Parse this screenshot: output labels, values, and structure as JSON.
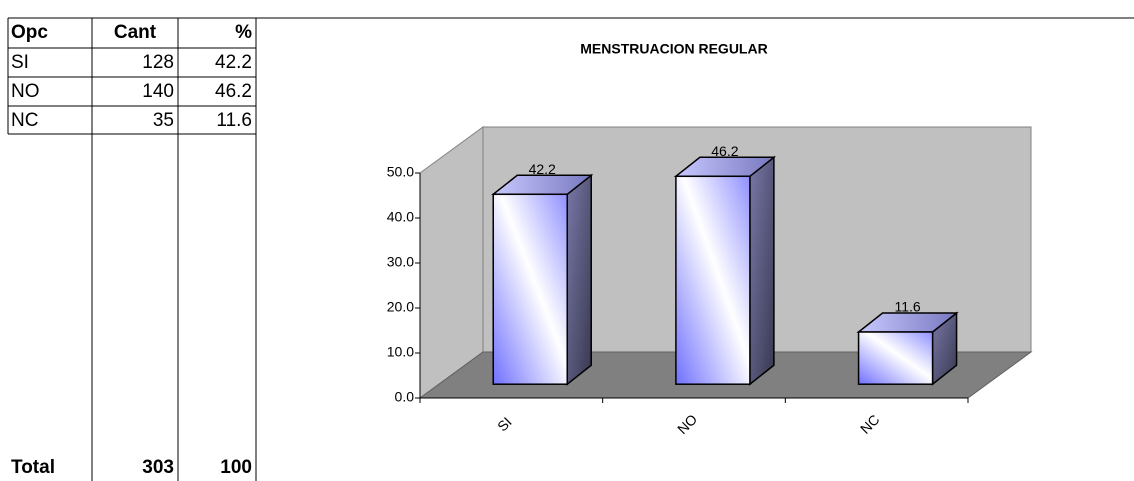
{
  "table": {
    "header": [
      "Opc",
      "Cant",
      "%"
    ],
    "rows": [
      [
        "SI",
        128,
        42.2
      ],
      [
        "NO",
        140,
        46.2
      ],
      [
        "NC",
        35,
        11.6
      ]
    ],
    "total": [
      "Total",
      303,
      100
    ]
  },
  "chart_data": {
    "type": "bar3d",
    "title": "MENSTRUACION REGULAR",
    "categories": [
      "SI",
      "NO",
      "NC"
    ],
    "values": [
      42.2,
      46.2,
      11.6
    ],
    "color": "#8080ff",
    "ylim": [
      0,
      50
    ],
    "yticks": [
      {
        "value": 0,
        "label": "0.0"
      },
      {
        "value": 10,
        "label": "10.0"
      },
      {
        "value": 20,
        "label": "20.0"
      },
      {
        "value": 30,
        "label": "30.0"
      },
      {
        "value": 40,
        "label": "40.0"
      },
      {
        "value": 50,
        "label": "50.0"
      }
    ],
    "grid": false
  }
}
